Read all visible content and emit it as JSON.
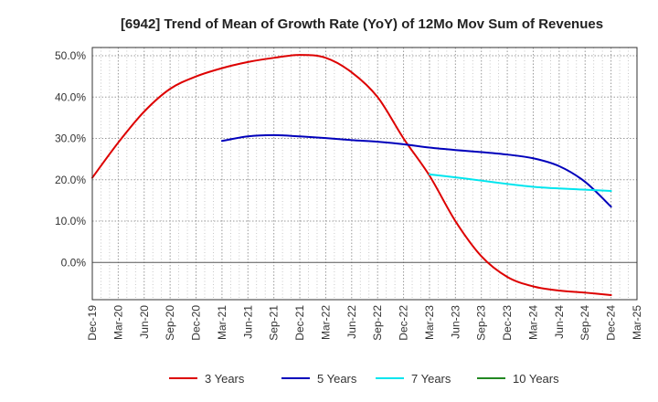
{
  "chart_data": {
    "type": "line",
    "title": "[6942]  Trend of Mean of Growth Rate (YoY) of 12Mo Mov Sum of Revenues",
    "xlabel": "",
    "ylabel": "",
    "x_ticks": [
      "Dec-19",
      "Mar-20",
      "Jun-20",
      "Sep-20",
      "Dec-20",
      "Mar-21",
      "Jun-21",
      "Sep-21",
      "Dec-21",
      "Mar-22",
      "Jun-22",
      "Sep-22",
      "Dec-22",
      "Mar-23",
      "Jun-23",
      "Sep-23",
      "Dec-23",
      "Mar-24",
      "Jun-24",
      "Sep-24",
      "Dec-24",
      "Mar-25"
    ],
    "y_ticks": [
      "0.0%",
      "10.0%",
      "20.0%",
      "30.0%",
      "40.0%",
      "50.0%"
    ],
    "y_tick_values": [
      0,
      10,
      20,
      30,
      40,
      50
    ],
    "ylim": [
      -9,
      52
    ],
    "grid": true,
    "legend_position": "bottom",
    "series": [
      {
        "name": "3 Years",
        "color": "#dd0000",
        "points": [
          [
            0,
            20.5
          ],
          [
            1,
            29
          ],
          [
            2,
            36.5
          ],
          [
            3,
            42
          ],
          [
            4,
            45
          ],
          [
            5,
            47
          ],
          [
            6,
            48.5
          ],
          [
            7,
            49.5
          ],
          [
            8,
            50.2
          ],
          [
            9,
            49.5
          ],
          [
            10,
            46
          ],
          [
            11,
            40
          ],
          [
            12,
            30
          ],
          [
            13,
            21
          ],
          [
            14,
            10
          ],
          [
            15,
            1.5
          ],
          [
            16,
            -3.5
          ],
          [
            17,
            -5.8
          ],
          [
            18,
            -6.8
          ],
          [
            19,
            -7.3
          ],
          [
            20,
            -7.9
          ]
        ]
      },
      {
        "name": "5 Years",
        "color": "#0000bb",
        "points": [
          [
            5,
            29.4
          ],
          [
            6,
            30.5
          ],
          [
            7,
            30.8
          ],
          [
            8,
            30.5
          ],
          [
            9,
            30.1
          ],
          [
            10,
            29.6
          ],
          [
            11,
            29.2
          ],
          [
            12,
            28.6
          ],
          [
            13,
            27.8
          ],
          [
            14,
            27.2
          ],
          [
            15,
            26.7
          ],
          [
            16,
            26.1
          ],
          [
            17,
            25.2
          ],
          [
            18,
            23.3
          ],
          [
            19,
            19.5
          ],
          [
            20,
            13.5
          ]
        ]
      },
      {
        "name": "7 Years",
        "color": "#00e5ee",
        "points": [
          [
            13,
            21.3
          ],
          [
            14,
            20.6
          ],
          [
            15,
            19.8
          ],
          [
            16,
            19.0
          ],
          [
            17,
            18.3
          ],
          [
            18,
            17.9
          ],
          [
            19,
            17.6
          ],
          [
            20,
            17.3
          ]
        ]
      },
      {
        "name": "10 Years",
        "color": "#228822",
        "points": []
      }
    ]
  }
}
